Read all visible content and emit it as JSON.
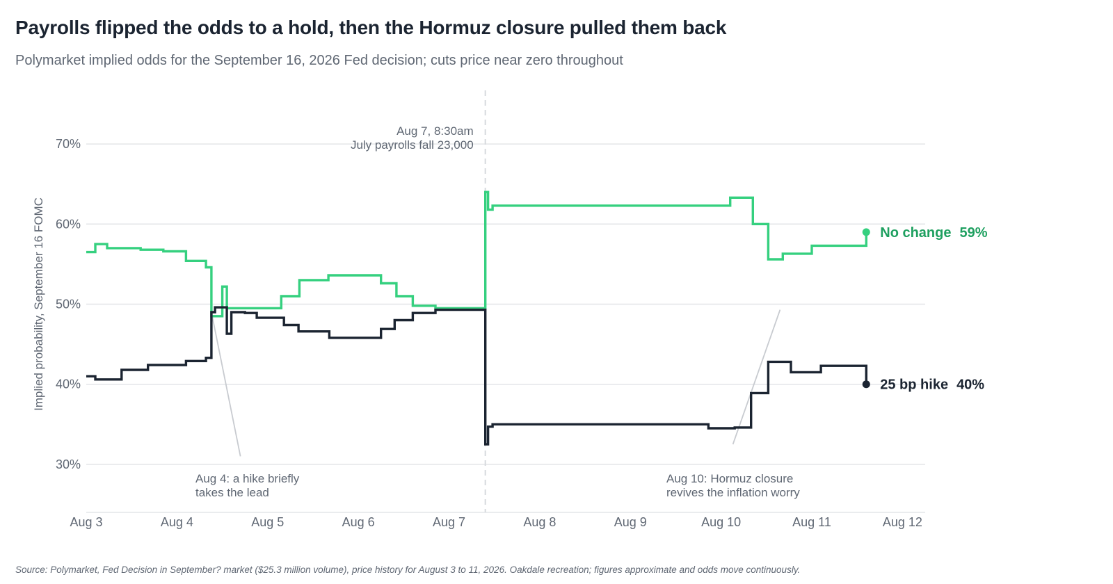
{
  "title": "Payrolls flipped the odds to a hold, then the Hormuz closure pulled them back",
  "subtitle": "Polymarket implied odds for the September 16, 2026 Fed decision; cuts price near zero throughout",
  "source": "Source: Polymarket, Fed Decision in September? market ($25.3 million volume), price history for August 3 to 11, 2026. Oakdale recreation; figures approximate and odds move continuously.",
  "colors": {
    "no_change": "#35d07f",
    "no_change_label": "#1fa060",
    "hike": "#1b2431",
    "grid": "#e3e5e8",
    "annot_line": "#c8cbd0"
  },
  "chart_data": {
    "type": "line",
    "step": true,
    "ylabel": "Implied probability, September 16 FOMC",
    "ylim": [
      24,
      76
    ],
    "yticks": [
      30,
      40,
      50,
      60,
      70
    ],
    "ytick_labels": [
      "30%",
      "40%",
      "50%",
      "60%",
      "70%"
    ],
    "xlim": [
      3,
      12.25
    ],
    "xticks": [
      3,
      4,
      5,
      6,
      7,
      8,
      9,
      10,
      11,
      12
    ],
    "xtick_labels": [
      "Aug 3",
      "Aug 4",
      "Aug 5",
      "Aug 6",
      "Aug 7",
      "Aug 8",
      "Aug 9",
      "Aug 10",
      "Aug 11",
      "Aug 12"
    ],
    "event_marker": {
      "x": 7.4,
      "lines": [
        "Aug 7, 8:30am",
        "July payrolls fall 23,000"
      ]
    },
    "annotations": [
      {
        "lines": [
          "Aug 4: a hike briefly",
          "takes the lead"
        ],
        "point": {
          "x": 4.38,
          "y": 49
        },
        "anchor": {
          "x": 4.7,
          "y": 31
        }
      },
      {
        "lines": [
          "Aug 10: Hormuz closure",
          "revives the inflation worry"
        ],
        "point": {
          "x": 10.65,
          "y": 49.3
        },
        "anchor": {
          "x": 10.13,
          "y": 32.5
        }
      }
    ],
    "series": [
      {
        "name": "No change",
        "end_value_label": "59%",
        "points": [
          [
            3.0,
            56.5
          ],
          [
            3.1,
            57.5
          ],
          [
            3.23,
            57.0
          ],
          [
            3.6,
            56.8
          ],
          [
            3.85,
            56.6
          ],
          [
            4.1,
            55.4
          ],
          [
            4.32,
            54.6
          ],
          [
            4.38,
            48.5
          ],
          [
            4.5,
            52.2
          ],
          [
            4.55,
            49.5
          ],
          [
            4.93,
            49.5
          ],
          [
            5.15,
            51.0
          ],
          [
            5.35,
            53.0
          ],
          [
            5.67,
            53.6
          ],
          [
            6.25,
            52.6
          ],
          [
            6.42,
            51.0
          ],
          [
            6.6,
            49.8
          ],
          [
            6.85,
            49.5
          ],
          [
            7.4,
            64.0
          ],
          [
            7.43,
            61.8
          ],
          [
            7.48,
            62.3
          ],
          [
            10.1,
            63.3
          ],
          [
            10.35,
            60.0
          ],
          [
            10.52,
            55.6
          ],
          [
            10.68,
            56.3
          ],
          [
            11.0,
            57.3
          ],
          [
            11.6,
            58.9
          ]
        ],
        "end_value": 59
      },
      {
        "name": "25 bp hike",
        "end_value_label": "40%",
        "points": [
          [
            3.0,
            41.0
          ],
          [
            3.1,
            40.6
          ],
          [
            3.39,
            41.8
          ],
          [
            3.68,
            42.4
          ],
          [
            4.1,
            42.9
          ],
          [
            4.32,
            43.3
          ],
          [
            4.38,
            49.0
          ],
          [
            4.42,
            49.6
          ],
          [
            4.55,
            46.3
          ],
          [
            4.6,
            49.0
          ],
          [
            4.75,
            48.9
          ],
          [
            4.88,
            48.3
          ],
          [
            5.18,
            47.4
          ],
          [
            5.34,
            46.6
          ],
          [
            5.68,
            45.8
          ],
          [
            6.25,
            46.9
          ],
          [
            6.4,
            48.0
          ],
          [
            6.6,
            48.9
          ],
          [
            6.85,
            49.3
          ],
          [
            7.4,
            32.5
          ],
          [
            7.43,
            34.7
          ],
          [
            7.48,
            35.0
          ],
          [
            9.86,
            34.5
          ],
          [
            10.15,
            34.6
          ],
          [
            10.33,
            38.9
          ],
          [
            10.52,
            42.8
          ],
          [
            10.77,
            41.5
          ],
          [
            11.1,
            42.3
          ],
          [
            11.6,
            40.1
          ]
        ],
        "end_value": 40
      }
    ]
  }
}
